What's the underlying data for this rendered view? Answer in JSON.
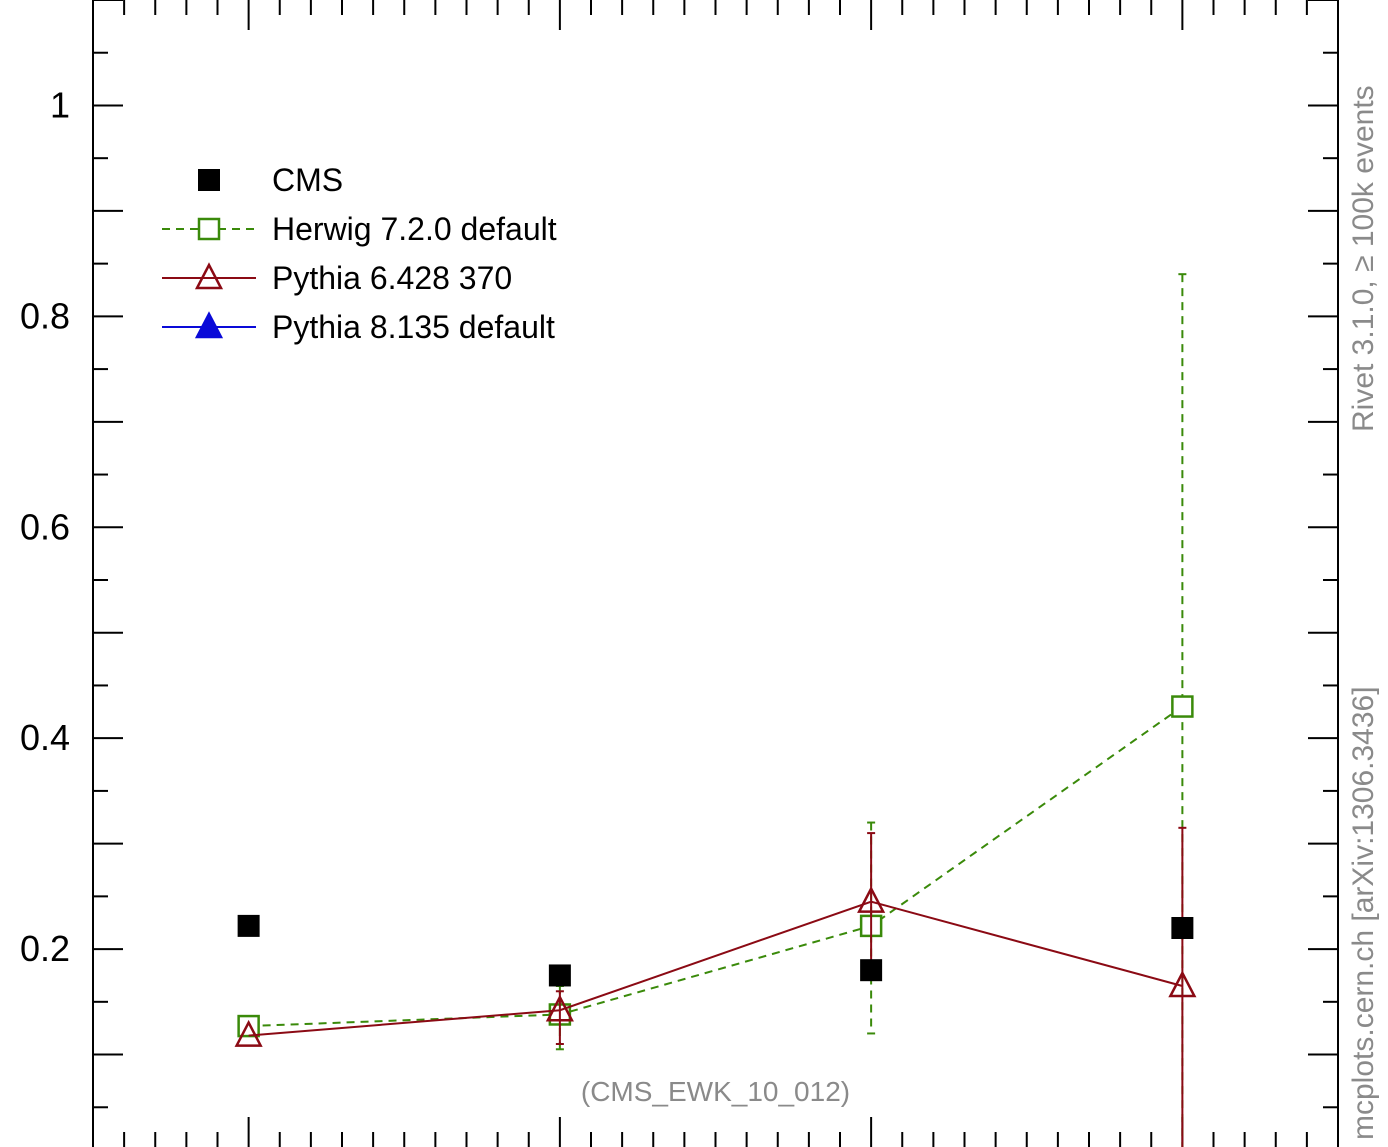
{
  "chart_data": {
    "type": "scatter",
    "title": "",
    "xlabel": "",
    "ylabel": "",
    "xlim": [
      0.5,
      4.5
    ],
    "ylim": [
      0.0,
      1.1
    ],
    "x": [
      1,
      2,
      3,
      4
    ],
    "yticks": [
      0.2,
      0.4,
      0.6,
      0.8,
      1.0
    ],
    "ytick_labels": [
      "0.2",
      "0.4",
      "0.6",
      "0.8",
      "1"
    ],
    "grid": false,
    "legend_position": "top-left",
    "annotation": "(CMS_EWK_10_012)",
    "series": [
      {
        "name": "CMS",
        "style": "filled-square",
        "color": "#000000",
        "values": [
          0.222,
          0.175,
          0.18,
          0.22
        ]
      },
      {
        "name": "Herwig 7.2.0 default",
        "style": "open-square-dashed",
        "color": "#3a8a0a",
        "values": [
          0.127,
          0.138,
          0.222,
          0.43
        ],
        "err_low": [
          0.127,
          0.105,
          0.12,
          0.0
        ],
        "err_high": [
          0.127,
          0.165,
          0.32,
          0.84
        ]
      },
      {
        "name": "Pythia 6.428 370",
        "style": "open-triangle-solid",
        "color": "#8b0a14",
        "values": [
          0.118,
          0.142,
          0.245,
          0.165
        ],
        "err_low": [
          0.118,
          0.11,
          0.18,
          0.0
        ],
        "err_high": [
          0.118,
          0.16,
          0.31,
          0.315
        ]
      },
      {
        "name": "Pythia 8.135 default",
        "style": "filled-triangle-solid",
        "color": "#0a0ad8",
        "values": []
      }
    ]
  },
  "side_labels": {
    "rivet": "Rivet 3.1.0, ≥ 100k events",
    "mcplots": "mcplots.cern.ch [arXiv:1306.3436]"
  },
  "colors": {
    "axis": "#000000",
    "side_text": "#8a8a8a",
    "annotation": "#8a8a8a"
  }
}
